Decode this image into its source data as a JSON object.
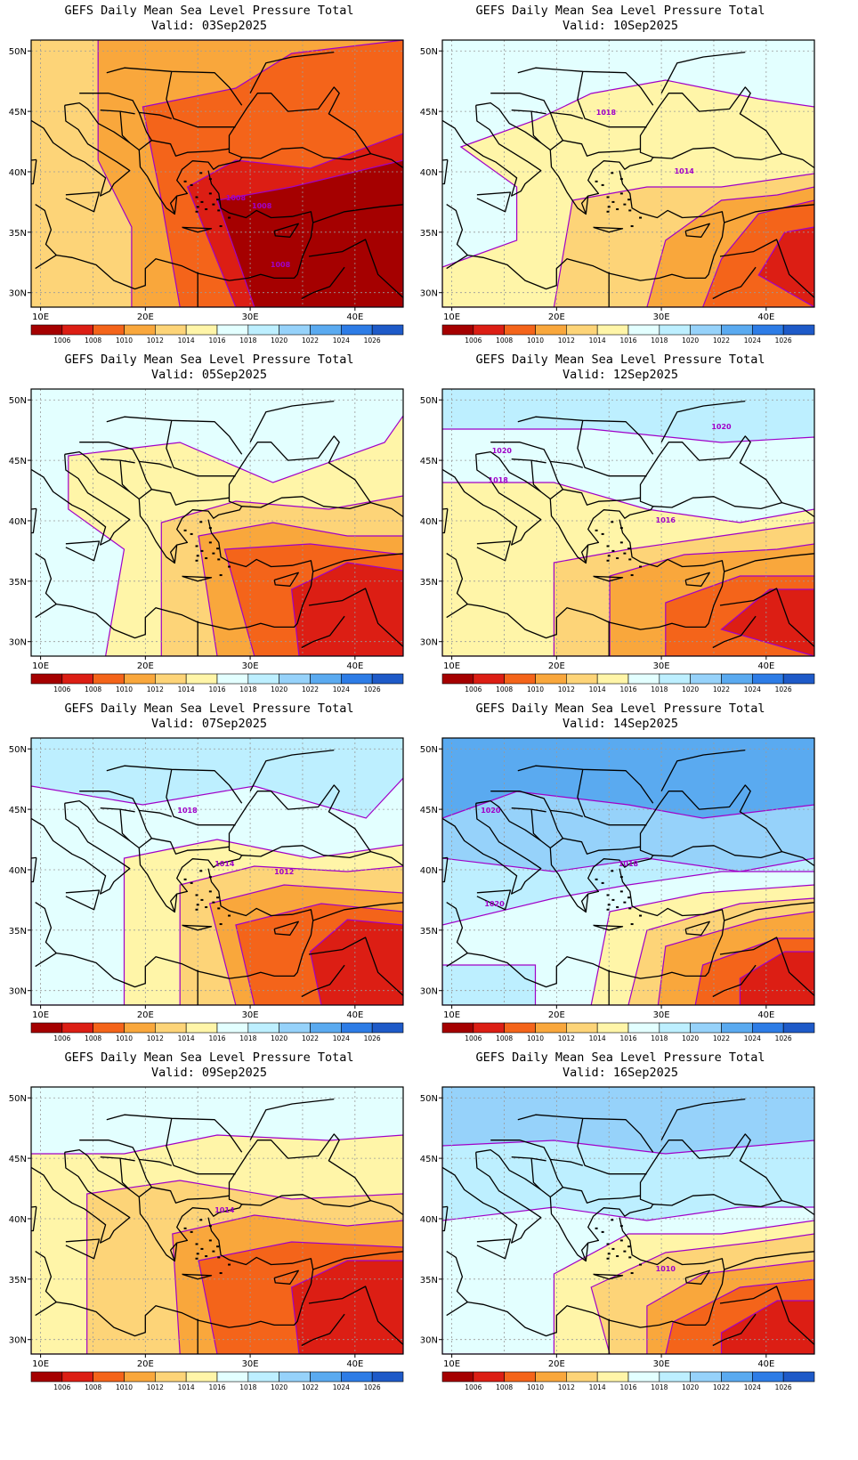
{
  "product": "GEFS Daily Mean Sea Level Pressure Total",
  "valid_prefix": "Valid:",
  "palette": {
    "1006": "#a50000",
    "1008": "#dc1e14",
    "1010": "#f4641a",
    "1012": "#f9a73c",
    "1014": "#fdd478",
    "1016": "#fff5a8",
    "1018": "#e3ffff",
    "1020": "#bdefff",
    "1022": "#96d2fa",
    "1024": "#5aaaf0",
    "1026": "#2d7ce6",
    "1028": "#1e5ac8",
    "contour": "#a000c8",
    "land": "#000000",
    "grid": "#9a9a9a"
  },
  "colorbar_labels": [
    "1006",
    "1008",
    "1010",
    "1012",
    "1014",
    "1016",
    "1018",
    "1020",
    "1022",
    "1024",
    "1026"
  ],
  "axes": {
    "lon_ticks": [
      "10E",
      "20E",
      "30E",
      "40E"
    ],
    "lat_ticks": [
      "50N",
      "45N",
      "40N",
      "35N",
      "30N"
    ]
  },
  "panels": [
    {
      "valid": "03Sep2025",
      "levels": [
        1014,
        1012,
        1010,
        1008,
        1006
      ],
      "contour_labels": [
        "1008",
        "1008",
        "1008"
      ]
    },
    {
      "valid": "10Sep2025",
      "levels": [
        1018,
        1016,
        1014,
        1012,
        1010,
        1008
      ],
      "contour_labels": [
        "1018",
        "1014"
      ]
    },
    {
      "valid": "05Sep2025",
      "levels": [
        1018,
        1016,
        1014,
        1012,
        1010,
        1008
      ],
      "contour_labels": []
    },
    {
      "valid": "12Sep2025",
      "levels": [
        1020,
        1018,
        1016,
        1014,
        1012,
        1010,
        1008
      ],
      "contour_labels": [
        "1020",
        "1020",
        "1018",
        "1016"
      ]
    },
    {
      "valid": "07Sep2025",
      "levels": [
        1020,
        1018,
        1016,
        1014,
        1012,
        1010,
        1008
      ],
      "contour_labels": [
        "1018",
        "1014",
        "1012"
      ]
    },
    {
      "valid": "14Sep2025",
      "levels": [
        1024,
        1022,
        1020,
        1018,
        1016,
        1014,
        1012,
        1010,
        1008
      ],
      "contour_labels": [
        "1020",
        "1018",
        "1020"
      ]
    },
    {
      "valid": "09Sep2025",
      "levels": [
        1018,
        1016,
        1014,
        1012,
        1010,
        1008
      ],
      "contour_labels": [
        "1014"
      ]
    },
    {
      "valid": "16Sep2025",
      "levels": [
        1022,
        1020,
        1018,
        1016,
        1014,
        1012,
        1010,
        1008
      ],
      "contour_labels": [
        "1010"
      ]
    }
  ]
}
